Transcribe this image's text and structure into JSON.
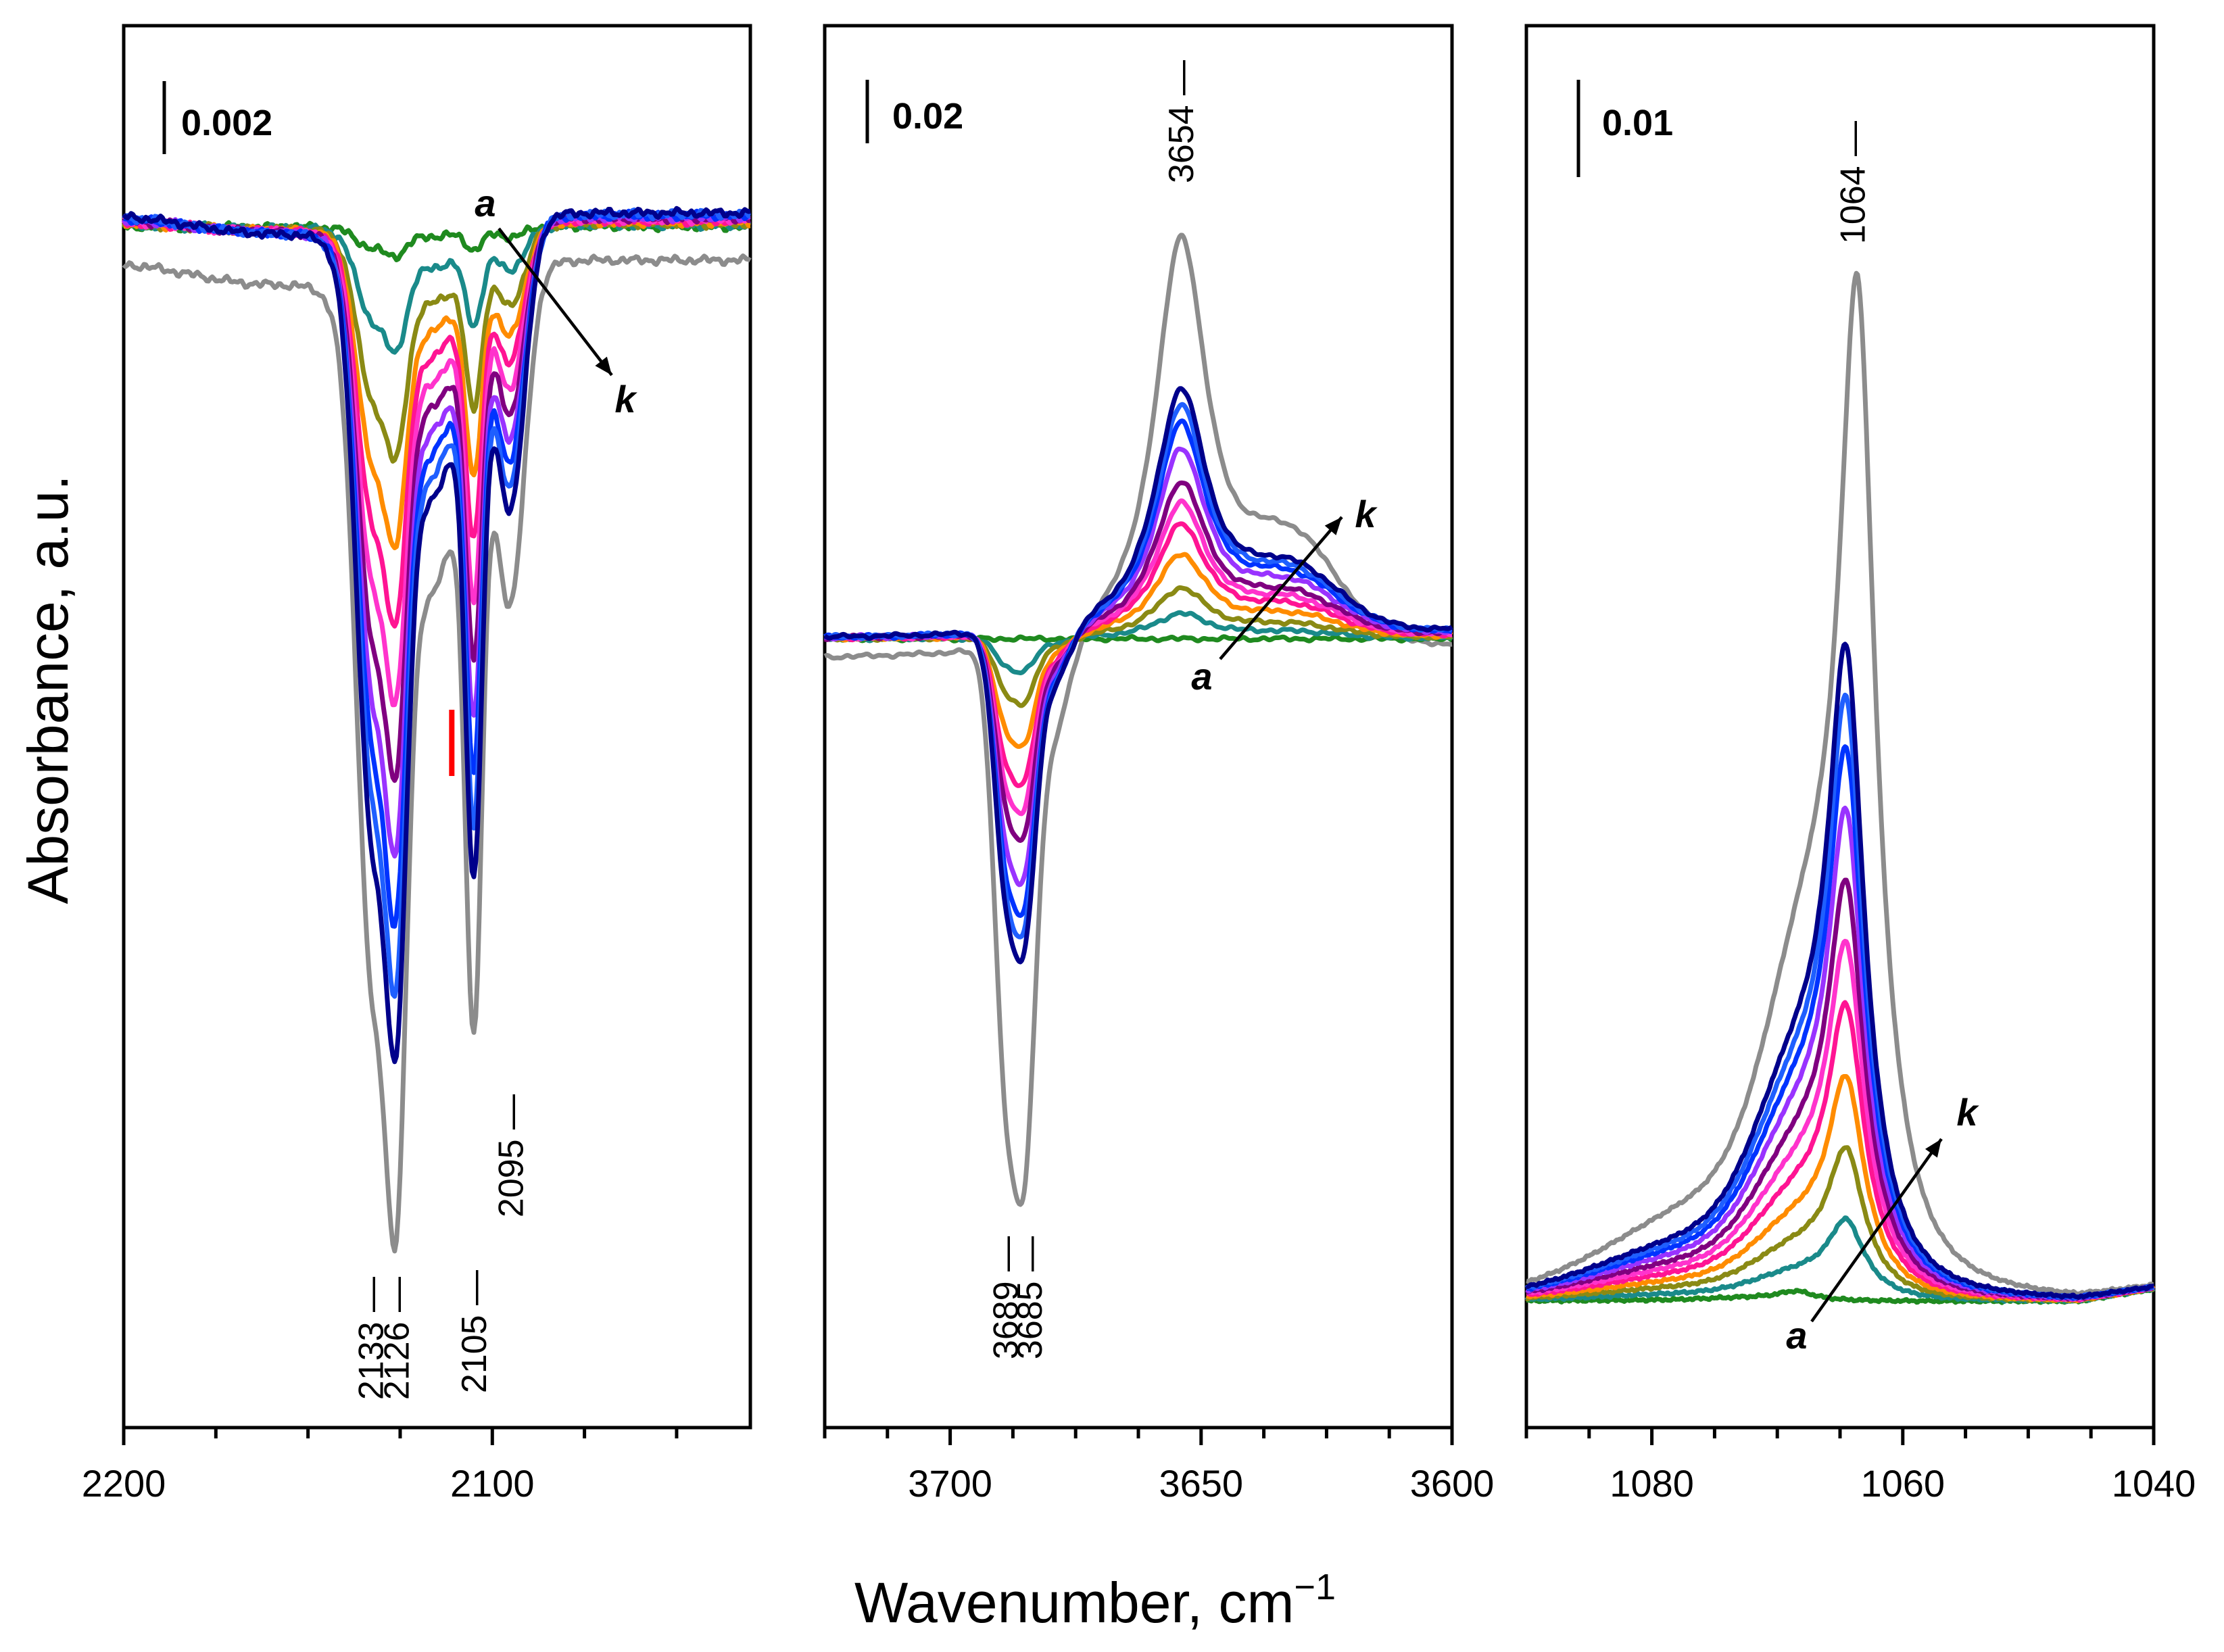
{
  "figure": {
    "ylabel": "Absorbance, a.u.",
    "xlabel_main": "Wavenumber, cm",
    "xlabel_sup": "−1",
    "series_first": "a",
    "series_last": "k",
    "colors": {
      "reference": "#8c8c8c",
      "ramp": [
        "#1f8a1f",
        "#1a8a8a",
        "#8a8a14",
        "#ff8c00",
        "#ff1493",
        "#ff33cc",
        "#800080",
        "#9933ff",
        "#0033ff",
        "#1f5fff",
        "#00008b"
      ],
      "marker": "#ff0000"
    }
  },
  "chart_data": [
    {
      "type": "line",
      "panel": "left",
      "xlim": [
        2200,
        2030
      ],
      "x_ticks": [
        2200,
        2100
      ],
      "scale_bar_label": "0.002",
      "peak_labels": [
        "2133",
        "2126",
        "2105",
        "2095"
      ],
      "peaks": [
        2133,
        2126,
        2105,
        2095
      ],
      "marker_x": 2111,
      "series_count": 11,
      "reference_min_depth": 1.0,
      "series_min_depths": [
        0.03,
        0.13,
        0.24,
        0.33,
        0.41,
        0.49,
        0.57,
        0.65,
        0.72,
        0.79,
        0.86
      ]
    },
    {
      "type": "line",
      "panel": "middle",
      "xlim": [
        3725,
        3600
      ],
      "x_ticks": [
        3700,
        3650,
        3600
      ],
      "scale_bar_label": "0.02",
      "peak_labels": [
        "3654",
        "3689",
        "3685"
      ],
      "peaks": [
        3654,
        3689,
        3685
      ],
      "series_count": 11,
      "reference_peak_height": 1.0,
      "series_peak_heights": [
        0.0,
        0.06,
        0.12,
        0.2,
        0.27,
        0.32,
        0.37,
        0.45,
        0.51,
        0.55,
        0.59
      ]
    },
    {
      "type": "line",
      "panel": "right",
      "xlim": [
        1090,
        1040
      ],
      "x_ticks": [
        1080,
        1060,
        1040
      ],
      "scale_bar_label": "0.01",
      "peak_labels": [
        "1064"
      ],
      "peaks": [
        1064
      ],
      "series_count": 11,
      "reference_peak_height": 1.0,
      "series_peak_heights": [
        0.01,
        0.08,
        0.15,
        0.22,
        0.29,
        0.35,
        0.41,
        0.48,
        0.54,
        0.59,
        0.64
      ]
    }
  ]
}
